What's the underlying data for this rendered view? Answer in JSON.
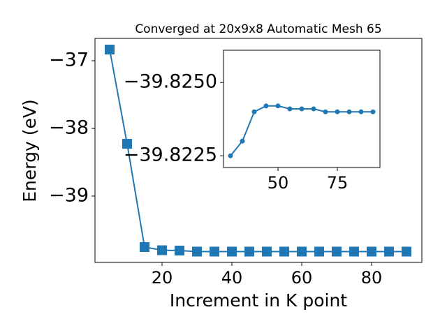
{
  "chart_data": [
    {
      "type": "line",
      "title": "Converged at 20x9x8 Automatic Mesh 65",
      "xlabel": "Increment in K point",
      "ylabel": "Energy (eV)",
      "x": [
        5,
        10,
        15,
        20,
        25,
        30,
        35,
        40,
        45,
        50,
        55,
        60,
        65,
        70,
        75,
        80,
        85,
        90
      ],
      "series": [
        {
          "color": "#1f77b4",
          "marker": "square",
          "values": [
            -36.835,
            -38.227,
            -39.753,
            -39.8,
            -39.805,
            -39.82,
            -39.82,
            -39.82,
            -39.82,
            -39.82,
            -39.82,
            -39.82,
            -39.82,
            -39.82,
            -39.82,
            -39.82,
            -39.82,
            -39.82
          ]
        }
      ],
      "xlim": [
        0.8,
        94.4
      ],
      "xticks": [
        20,
        40,
        60,
        80
      ],
      "ylim": [
        -39.98,
        -36.67
      ],
      "yticks": [
        {
          "value": -37,
          "label": "−37"
        },
        {
          "value": -38,
          "label": "−38"
        },
        {
          "value": -39,
          "label": "−39"
        }
      ]
    },
    {
      "type": "line",
      "x": [
        30,
        35,
        40,
        45,
        50,
        55,
        60,
        65,
        70,
        75,
        80,
        85,
        90
      ],
      "series": [
        {
          "color": "#1f77b4",
          "marker": "circle",
          "values": [
            -39.8225,
            -39.823,
            -39.824,
            -39.8242,
            -39.8242,
            -39.8241,
            -39.8241,
            -39.8241,
            -39.824,
            -39.824,
            -39.824,
            -39.824,
            -39.824
          ]
        }
      ],
      "xlim": [
        27.06,
        92.94
      ],
      "xticks": [
        50,
        75
      ],
      "ylim": [
        -39.8221,
        -39.8261
      ],
      "yticks": [
        {
          "value": -39.825,
          "label": "−39.8250"
        },
        {
          "value": -39.8225,
          "label": "−39.8225"
        }
      ]
    }
  ]
}
